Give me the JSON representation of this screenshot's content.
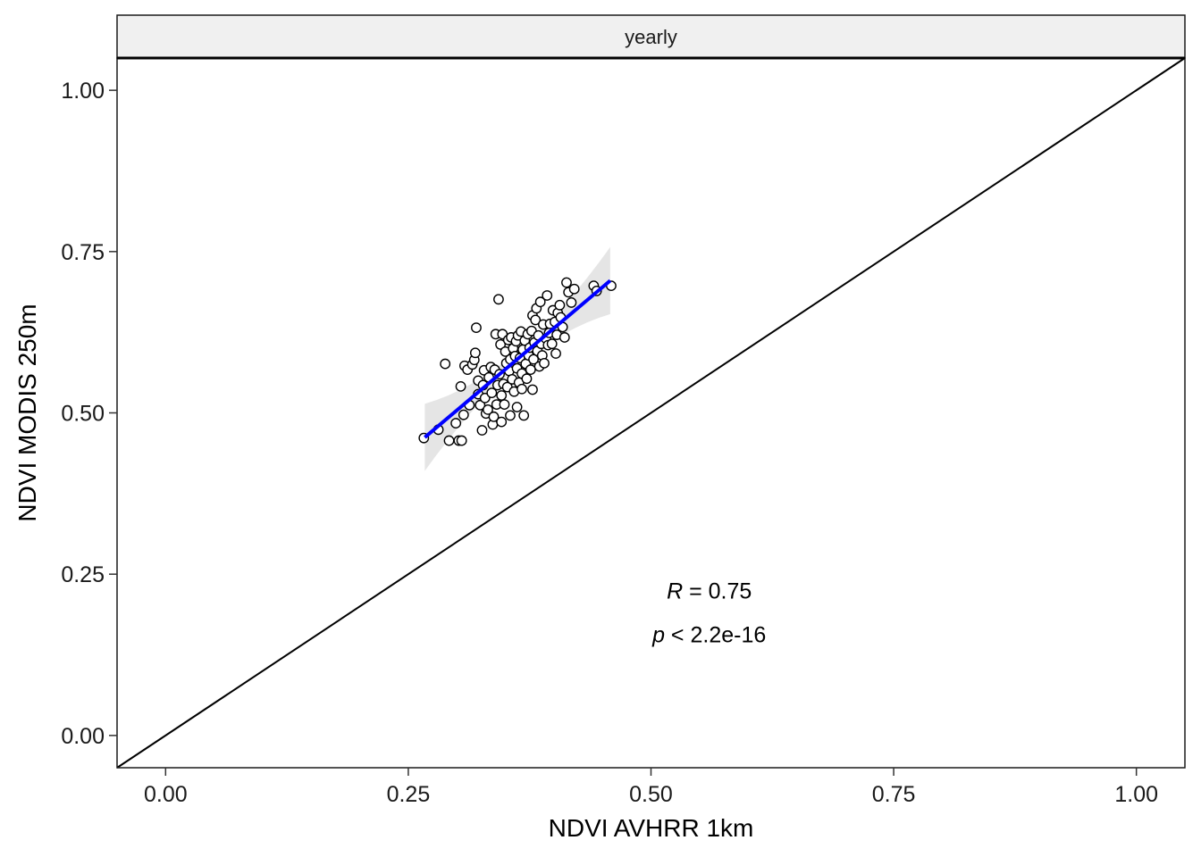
{
  "chart_data": {
    "type": "scatter",
    "facet_label": "yearly",
    "xlabel": "NDVI AVHRR 1km",
    "ylabel": "NDVI MODIS 250m",
    "xlim": [
      -0.05,
      1.05
    ],
    "ylim": [
      -0.05,
      1.05
    ],
    "x_ticks": [
      0.0,
      0.25,
      0.5,
      0.75,
      1.0
    ],
    "x_tick_labels": [
      "0.00",
      "0.25",
      "0.50",
      "0.75",
      "1.00"
    ],
    "y_ticks": [
      0.0,
      0.25,
      0.5,
      0.75,
      1.0
    ],
    "y_tick_labels": [
      "0.00",
      "0.25",
      "0.50",
      "0.75",
      "1.00"
    ],
    "grid": false,
    "identity_line": {
      "from": [
        -0.05,
        -0.05
      ],
      "to": [
        1.05,
        1.05
      ],
      "color": "#000000"
    },
    "fit_line": {
      "from": [
        0.267,
        0.462
      ],
      "to": [
        0.458,
        0.705
      ],
      "color": "#0000ff"
    },
    "fit_band_color": "#bebebe",
    "annotation": {
      "r_symbol": "R",
      "r_text": " = 0.75",
      "p_symbol": "p",
      "p_text": " < 2.2e-16",
      "x": 0.56
    },
    "points": [
      [
        0.266,
        0.461
      ],
      [
        0.281,
        0.474
      ],
      [
        0.288,
        0.576
      ],
      [
        0.292,
        0.457
      ],
      [
        0.299,
        0.484
      ],
      [
        0.302,
        0.457
      ],
      [
        0.305,
        0.457
      ],
      [
        0.304,
        0.541
      ],
      [
        0.307,
        0.497
      ],
      [
        0.308,
        0.573
      ],
      [
        0.311,
        0.567
      ],
      [
        0.313,
        0.512
      ],
      [
        0.316,
        0.575
      ],
      [
        0.318,
        0.582
      ],
      [
        0.319,
        0.593
      ],
      [
        0.32,
        0.632
      ],
      [
        0.322,
        0.529
      ],
      [
        0.322,
        0.55
      ],
      [
        0.324,
        0.512
      ],
      [
        0.326,
        0.473
      ],
      [
        0.327,
        0.543
      ],
      [
        0.328,
        0.566
      ],
      [
        0.329,
        0.523
      ],
      [
        0.33,
        0.499
      ],
      [
        0.332,
        0.505
      ],
      [
        0.333,
        0.555
      ],
      [
        0.335,
        0.571
      ],
      [
        0.336,
        0.531
      ],
      [
        0.337,
        0.482
      ],
      [
        0.338,
        0.494
      ],
      [
        0.339,
        0.567
      ],
      [
        0.34,
        0.622
      ],
      [
        0.341,
        0.513
      ],
      [
        0.342,
        0.543
      ],
      [
        0.343,
        0.676
      ],
      [
        0.344,
        0.56
      ],
      [
        0.345,
        0.606
      ],
      [
        0.346,
        0.486
      ],
      [
        0.346,
        0.527
      ],
      [
        0.347,
        0.622
      ],
      [
        0.348,
        0.545
      ],
      [
        0.349,
        0.513
      ],
      [
        0.35,
        0.595
      ],
      [
        0.351,
        0.577
      ],
      [
        0.352,
        0.54
      ],
      [
        0.353,
        0.613
      ],
      [
        0.354,
        0.565
      ],
      [
        0.355,
        0.583
      ],
      [
        0.355,
        0.496
      ],
      [
        0.356,
        0.617
      ],
      [
        0.357,
        0.552
      ],
      [
        0.358,
        0.6
      ],
      [
        0.359,
        0.533
      ],
      [
        0.36,
        0.588
      ],
      [
        0.361,
        0.611
      ],
      [
        0.362,
        0.509
      ],
      [
        0.362,
        0.569
      ],
      [
        0.363,
        0.62
      ],
      [
        0.364,
        0.547
      ],
      [
        0.365,
        0.585
      ],
      [
        0.366,
        0.626
      ],
      [
        0.367,
        0.561
      ],
      [
        0.367,
        0.537
      ],
      [
        0.368,
        0.598
      ],
      [
        0.369,
        0.496
      ],
      [
        0.37,
        0.612
      ],
      [
        0.371,
        0.576
      ],
      [
        0.372,
        0.553
      ],
      [
        0.373,
        0.622
      ],
      [
        0.374,
        0.589
      ],
      [
        0.375,
        0.601
      ],
      [
        0.376,
        0.567
      ],
      [
        0.377,
        0.627
      ],
      [
        0.378,
        0.651
      ],
      [
        0.378,
        0.536
      ],
      [
        0.379,
        0.583
      ],
      [
        0.38,
        0.609
      ],
      [
        0.381,
        0.644
      ],
      [
        0.382,
        0.662
      ],
      [
        0.383,
        0.596
      ],
      [
        0.384,
        0.62
      ],
      [
        0.385,
        0.572
      ],
      [
        0.386,
        0.672
      ],
      [
        0.387,
        0.607
      ],
      [
        0.388,
        0.589
      ],
      [
        0.389,
        0.637
      ],
      [
        0.39,
        0.577
      ],
      [
        0.392,
        0.615
      ],
      [
        0.393,
        0.682
      ],
      [
        0.394,
        0.605
      ],
      [
        0.395,
        0.624
      ],
      [
        0.396,
        0.638
      ],
      [
        0.398,
        0.607
      ],
      [
        0.399,
        0.659
      ],
      [
        0.401,
        0.641
      ],
      [
        0.402,
        0.592
      ],
      [
        0.403,
        0.621
      ],
      [
        0.404,
        0.655
      ],
      [
        0.406,
        0.667
      ],
      [
        0.407,
        0.648
      ],
      [
        0.409,
        0.633
      ],
      [
        0.411,
        0.617
      ],
      [
        0.413,
        0.702
      ],
      [
        0.415,
        0.687
      ],
      [
        0.418,
        0.671
      ],
      [
        0.421,
        0.692
      ],
      [
        0.441,
        0.697
      ],
      [
        0.444,
        0.689
      ],
      [
        0.459,
        0.697
      ]
    ]
  }
}
